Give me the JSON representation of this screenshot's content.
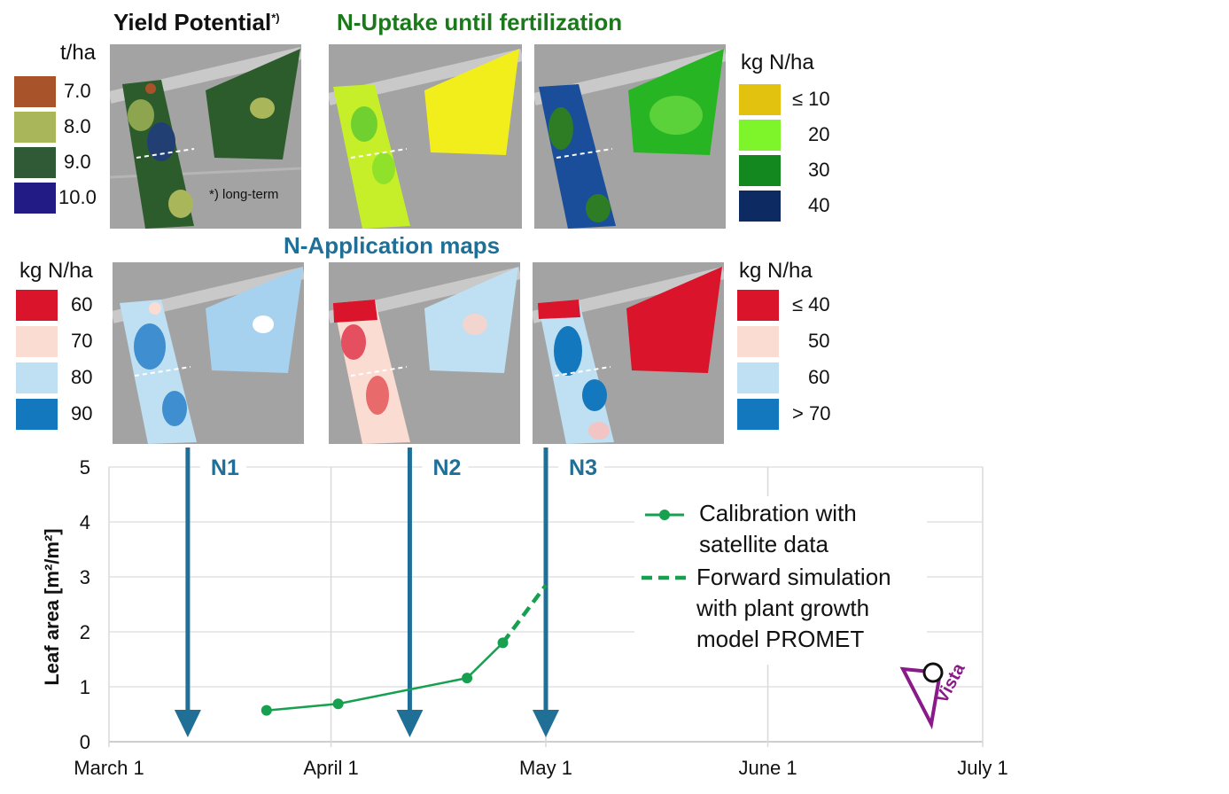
{
  "yield_potential": {
    "title": "Yield Potential",
    "title_sup": "*)",
    "unit": "t/ha",
    "footnote": "*) long-term",
    "legend": [
      {
        "label": "7.0",
        "color": "#a8532a"
      },
      {
        "label": "8.0",
        "color": "#a9b65a"
      },
      {
        "label": "9.0",
        "color": "#2f5a35"
      },
      {
        "label": "10.0",
        "color": "#221a85"
      }
    ]
  },
  "n_uptake": {
    "title": "N-Uptake until fertilization",
    "unit": "kg N/ha",
    "legend": [
      {
        "label": "≤ 10",
        "color": "#e2c20f"
      },
      {
        "label": "20",
        "color": "#7ef52a"
      },
      {
        "label": "30",
        "color": "#13881f"
      },
      {
        "label": "40",
        "color": "#0d2a63"
      }
    ]
  },
  "n_application": {
    "title": "N-Application maps",
    "left_unit": "kg N/ha",
    "left_legend": [
      {
        "label": "60",
        "color": "#d9142b"
      },
      {
        "label": "70",
        "color": "#fbdcd3"
      },
      {
        "label": "80",
        "color": "#bfe0f3"
      },
      {
        "label": "90",
        "color": "#1478be"
      }
    ],
    "right_unit": "kg N/ha",
    "right_legend": [
      {
        "label": "≤ 40",
        "color": "#d9142b"
      },
      {
        "label": "50",
        "color": "#fbdcd3"
      },
      {
        "label": "60",
        "color": "#bfe0f3"
      },
      {
        "label": "> 70",
        "color": "#1478be"
      }
    ]
  },
  "chart_data": {
    "type": "line",
    "ylabel": "Leaf area [m²/m²]",
    "xlabel": "",
    "x_ticks": [
      "March 1",
      "April 1",
      "May 1",
      "June 1",
      "July 1"
    ],
    "y_ticks": [
      "0",
      "1",
      "2",
      "3",
      "4",
      "5"
    ],
    "ylim": [
      0,
      5
    ],
    "xlim": [
      "March 1",
      "July 1"
    ],
    "grid": true,
    "legend_position": "right",
    "series": [
      {
        "name": "Calibration with satellite data",
        "style": "solid",
        "color": "#16a050",
        "points": [
          {
            "x": "March 23",
            "y": 0.57
          },
          {
            "x": "April 2",
            "y": 0.69
          },
          {
            "x": "April 20",
            "y": 1.16
          },
          {
            "x": "April 25",
            "y": 1.8
          }
        ]
      },
      {
        "name": "Forward simulation with plant growth model PROMET",
        "style": "dashed",
        "color": "#16a050",
        "points": [
          {
            "x": "April 25",
            "y": 1.8
          },
          {
            "x": "May 1",
            "y": 2.85
          }
        ]
      }
    ],
    "legend_lines": [
      [
        "Calibration with",
        "satellite data"
      ],
      [
        "Forward simulation",
        "with plant growth",
        "model PROMET"
      ]
    ],
    "annotations": [
      {
        "label": "N1",
        "x": "March 12"
      },
      {
        "label": "N2",
        "x": "April 12"
      },
      {
        "label": "N3",
        "x": "May 1"
      }
    ],
    "annotation_color": "#1f6f97"
  },
  "logo": {
    "text": "Vista",
    "color": "#8a1a8a"
  }
}
